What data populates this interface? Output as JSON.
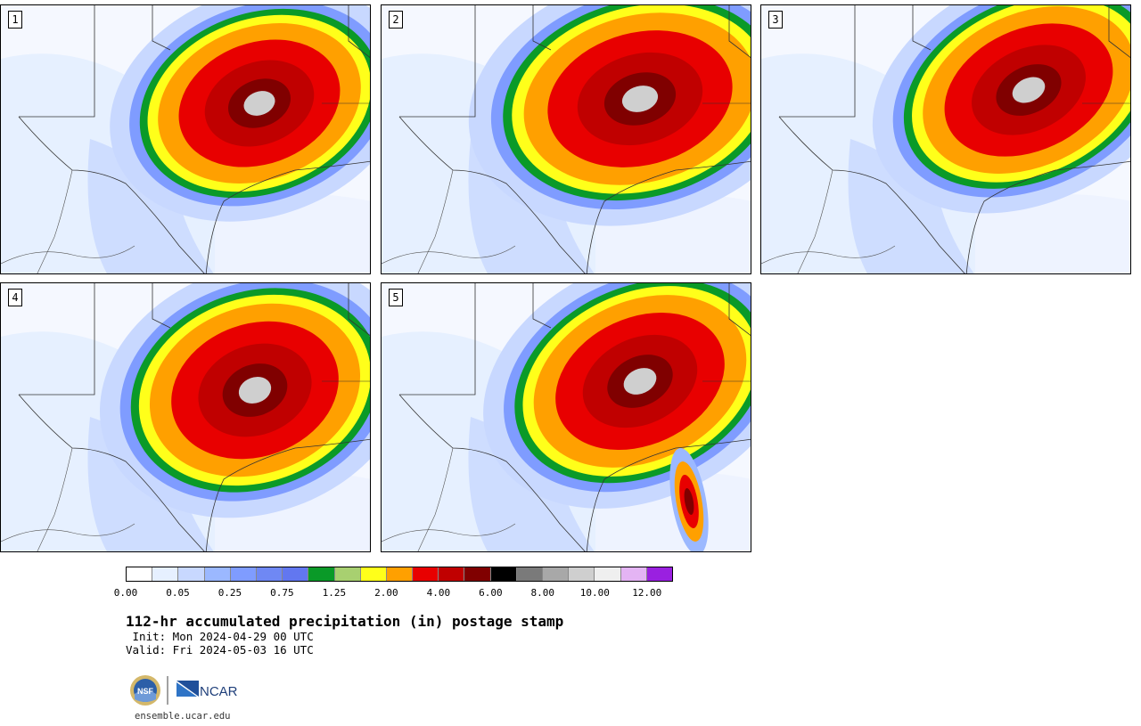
{
  "panels": [
    {
      "label": "1"
    },
    {
      "label": "2"
    },
    {
      "label": "3"
    },
    {
      "label": "4"
    },
    {
      "label": "5"
    }
  ],
  "colorbar": {
    "colors": [
      "#ffffff",
      "#e6f0ff",
      "#c8d8ff",
      "#9bb8ff",
      "#7f9cff",
      "#6f88f4",
      "#6277f0",
      "#0a9a28",
      "#a8d070",
      "#ffff1a",
      "#ffa000",
      "#e80000",
      "#c00000",
      "#800000",
      "#000000",
      "#7a7a7a",
      "#a8a8a8",
      "#cfcfcf",
      "#efefef",
      "#e4b4f4",
      "#9a20e0"
    ],
    "ticks": [
      "0.00",
      "0.05",
      "0.25",
      "0.75",
      "1.25",
      "2.00",
      "4.00",
      "6.00",
      "8.00",
      "10.00",
      "12.00"
    ]
  },
  "title": "112-hr accumulated precipitation (in) postage stamp",
  "init": " Init: Mon 2024-04-29 00 UTC",
  "valid": "Valid: Fri 2024-05-03 16 UTC",
  "logos": {
    "nsf": "NSF",
    "ncar": "NCAR"
  },
  "site": "ensemble.ucar.edu"
}
